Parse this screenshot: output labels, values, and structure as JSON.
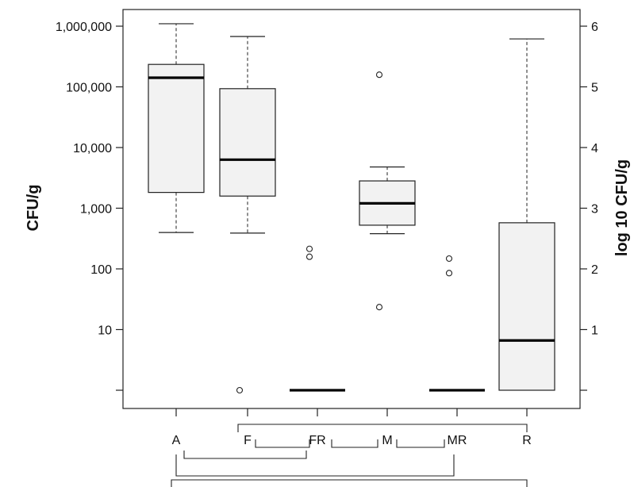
{
  "chart_data": {
    "type": "box",
    "categories": [
      "A",
      "F",
      "FR",
      "M",
      "MR",
      "R"
    ],
    "ylabel_left": "CFU/g",
    "ylabel_right": "log 10 CFU/g",
    "y_scale": "log10",
    "y_range_log10": [
      -0.3,
      6.3
    ],
    "left_ticks": [
      {
        "log": 0,
        "label": ""
      },
      {
        "log": 1,
        "label": "10"
      },
      {
        "log": 2,
        "label": "100"
      },
      {
        "log": 3,
        "label": "1,000"
      },
      {
        "log": 4,
        "label": "10,000"
      },
      {
        "log": 5,
        "label": "100,000"
      },
      {
        "log": 6,
        "label": "1,000,000"
      }
    ],
    "right_ticks": [
      {
        "log": 0,
        "label": ""
      },
      {
        "log": 1,
        "label": "1"
      },
      {
        "log": 2,
        "label": "2"
      },
      {
        "log": 3,
        "label": "3"
      },
      {
        "log": 4,
        "label": "4"
      },
      {
        "log": 5,
        "label": "5"
      },
      {
        "log": 6,
        "label": "6"
      }
    ],
    "boxes": [
      {
        "category": "A",
        "whisker_low": 2.6,
        "q1": 3.26,
        "median": 5.15,
        "q3": 5.37,
        "whisker_high": 6.04,
        "outliers": []
      },
      {
        "category": "F",
        "whisker_low": 2.59,
        "q1": 3.2,
        "median": 3.8,
        "q3": 4.97,
        "whisker_high": 5.83,
        "outliers": [
          0
        ]
      },
      {
        "category": "FR",
        "whisker_low": 0,
        "q1": 0,
        "median": 0,
        "q3": 0,
        "whisker_high": 0,
        "outliers": [
          2.33,
          2.2
        ]
      },
      {
        "category": "M",
        "whisker_low": 2.58,
        "q1": 2.72,
        "median": 3.08,
        "q3": 3.45,
        "whisker_high": 3.68,
        "outliers": [
          5.2,
          1.37
        ]
      },
      {
        "category": "MR",
        "whisker_low": 0,
        "q1": 0,
        "median": 0,
        "q3": 0,
        "whisker_high": 0,
        "outliers": [
          2.17,
          1.93
        ]
      },
      {
        "category": "R",
        "whisker_low": 0,
        "q1": 0,
        "median": 0.82,
        "q3": 2.76,
        "whisker_high": 5.79,
        "outliers": []
      }
    ],
    "comparison_brackets": [
      {
        "from": "F",
        "to": "R"
      },
      {
        "from": "F",
        "to": "FR"
      },
      {
        "from": "FR",
        "to": "M"
      },
      {
        "from": "M",
        "to": "MR"
      },
      {
        "from": "A",
        "to": "FR"
      },
      {
        "from": "A",
        "to": "MR"
      },
      {
        "from": "A",
        "to": "R"
      }
    ],
    "grid": false,
    "legend": "none"
  }
}
